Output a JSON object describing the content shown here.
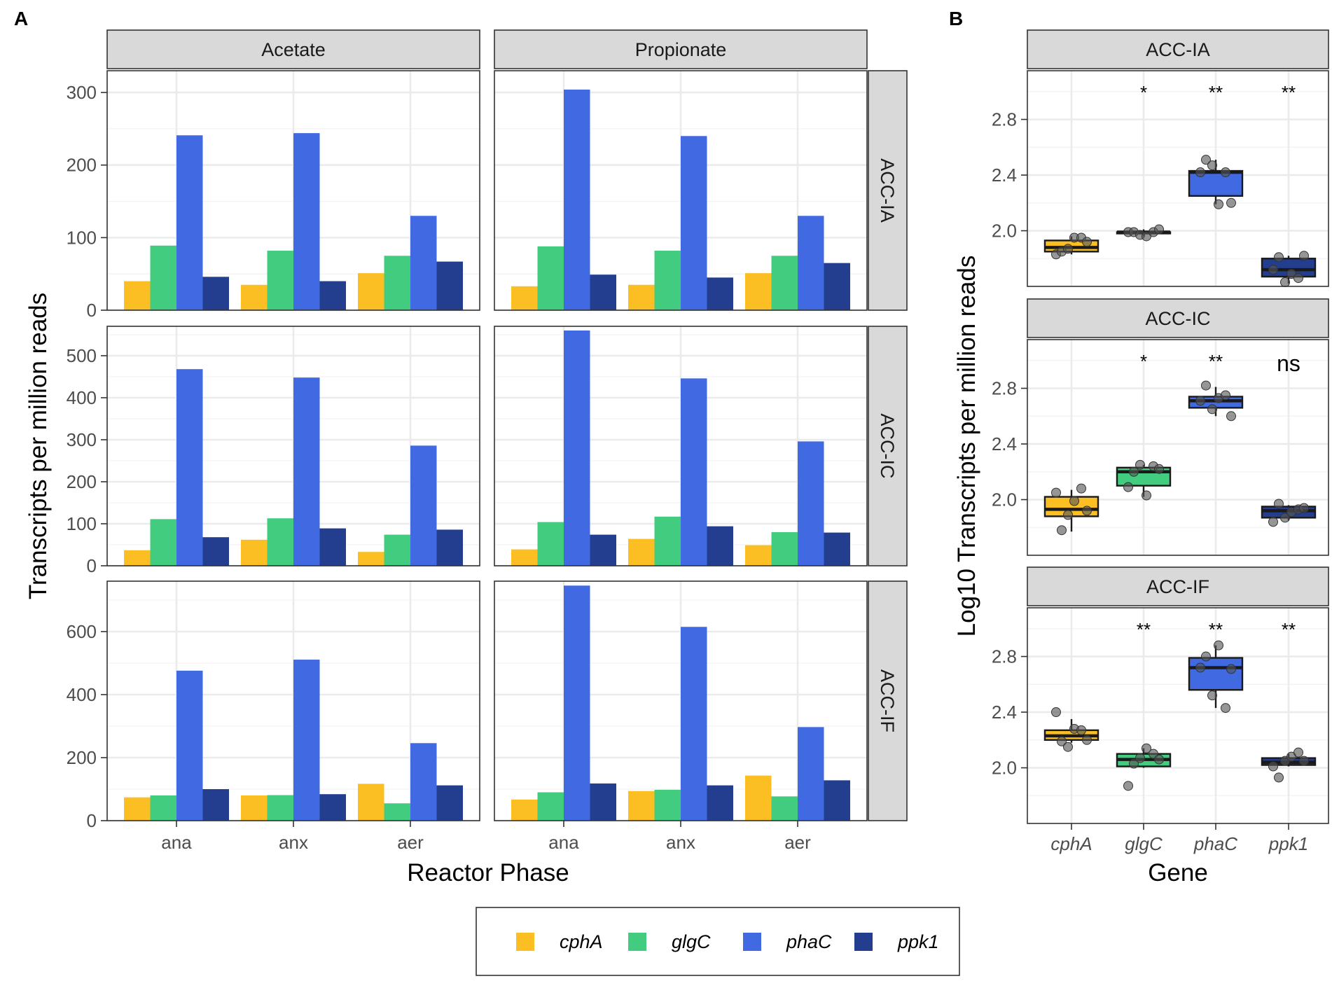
{
  "chart_data": [
    {
      "panel": "A",
      "type": "bar",
      "xlabel": "Reactor Phase",
      "ylabel": "Transcripts per million reads",
      "columns": [
        "Acetate",
        "Propionate"
      ],
      "rows": [
        "ACC-IA",
        "ACC-IC",
        "ACC-IF"
      ],
      "categories": [
        "ana",
        "anx",
        "aer"
      ],
      "genes": [
        "cphA",
        "glgC",
        "phaC",
        "ppk1"
      ],
      "ylims": [
        [
          0,
          330
        ],
        [
          0,
          570
        ],
        [
          0,
          760
        ]
      ],
      "yticks": [
        [
          0,
          100,
          200,
          300
        ],
        [
          0,
          100,
          200,
          300,
          400,
          500
        ],
        [
          0,
          200,
          400,
          600
        ]
      ],
      "values": [
        [
          {
            "cphA": [
              40,
              35,
              51
            ],
            "glgC": [
              89,
              82,
              75
            ],
            "phaC": [
              241,
              244,
              130
            ],
            "ppk1": [
              46,
              40,
              67
            ]
          },
          {
            "cphA": [
              33,
              35,
              51
            ],
            "glgC": [
              88,
              82,
              75
            ],
            "phaC": [
              304,
              240,
              130
            ],
            "ppk1": [
              49,
              45,
              65
            ]
          }
        ],
        [
          {
            "cphA": [
              37,
              62,
              33
            ],
            "glgC": [
              111,
              113,
              74
            ],
            "phaC": [
              468,
              448,
              286
            ],
            "ppk1": [
              68,
              89,
              86
            ]
          },
          {
            "cphA": [
              39,
              64,
              49
            ],
            "glgC": [
              104,
              117,
              80
            ],
            "phaC": [
              560,
              446,
              296
            ],
            "ppk1": [
              74,
              94,
              79
            ]
          }
        ],
        [
          {
            "cphA": [
              74,
              80,
              117
            ],
            "glgC": [
              80,
              81,
              55
            ],
            "phaC": [
              476,
              511,
              246
            ],
            "ppk1": [
              100,
              84,
              112
            ]
          },
          {
            "cphA": [
              67,
              94,
              143
            ],
            "glgC": [
              90,
              98,
              77
            ],
            "phaC": [
              746,
              615,
              297
            ],
            "ppk1": [
              118,
              112,
              128
            ]
          }
        ]
      ]
    },
    {
      "panel": "B",
      "type": "box",
      "xlabel": "Gene",
      "ylabel": "Log10 Transcripts per million reads",
      "categories": [
        "cphA",
        "glgC",
        "phaC",
        "ppk1"
      ],
      "ylim": [
        1.6,
        3.15
      ],
      "yticks": [
        2.0,
        2.4,
        2.8
      ],
      "facets": [
        {
          "label": "ACC-IA",
          "signif": [
            "",
            "*",
            "**",
            "**"
          ],
          "boxes": [
            {
              "gene": "cphA",
              "min": 1.83,
              "q1": 1.85,
              "median": 1.88,
              "q3": 1.93,
              "max": 1.96,
              "points": [
                1.83,
                1.85,
                1.87,
                1.95,
                1.95,
                1.92
              ]
            },
            {
              "gene": "glgC",
              "min": 1.96,
              "q1": 1.98,
              "median": 1.99,
              "q3": 1.99,
              "max": 2.01,
              "points": [
                1.99,
                1.99,
                1.97,
                1.96,
                1.99,
                2.01
              ]
            },
            {
              "gene": "phaC",
              "min": 2.19,
              "q1": 2.25,
              "median": 2.42,
              "q3": 2.43,
              "max": 2.51,
              "points": [
                2.42,
                2.51,
                2.47,
                2.19,
                2.42,
                2.2
              ]
            },
            {
              "gene": "ppk1",
              "min": 1.62,
              "q1": 1.67,
              "median": 1.72,
              "q3": 1.8,
              "max": 1.82,
              "points": [
                1.72,
                1.81,
                1.63,
                1.69,
                1.66,
                1.82
              ]
            }
          ]
        },
        {
          "label": "ACC-IC",
          "signif": [
            "",
            "*",
            "**",
            "ns"
          ],
          "boxes": [
            {
              "gene": "cphA",
              "min": 1.77,
              "q1": 1.88,
              "median": 1.93,
              "q3": 2.02,
              "max": 2.07,
              "points": [
                2.05,
                1.78,
                1.89,
                1.99,
                2.08,
                1.92
              ]
            },
            {
              "gene": "glgC",
              "min": 2.02,
              "q1": 2.1,
              "median": 2.2,
              "q3": 2.23,
              "max": 2.25,
              "points": [
                2.09,
                2.2,
                2.25,
                2.03,
                2.24,
                2.22
              ]
            },
            {
              "gene": "phaC",
              "min": 2.6,
              "q1": 2.66,
              "median": 2.71,
              "q3": 2.74,
              "max": 2.81,
              "points": [
                2.71,
                2.82,
                2.65,
                2.73,
                2.75,
                2.6
              ]
            },
            {
              "gene": "ppk1",
              "min": 1.85,
              "q1": 1.87,
              "median": 1.92,
              "q3": 1.95,
              "max": 1.96,
              "points": [
                1.84,
                1.97,
                1.87,
                1.91,
                1.93,
                1.94
              ]
            }
          ]
        },
        {
          "label": "ACC-IF",
          "signif": [
            "",
            "**",
            "**",
            "**"
          ],
          "boxes": [
            {
              "gene": "cphA",
              "min": 2.18,
              "q1": 2.2,
              "median": 2.23,
              "q3": 2.27,
              "max": 2.35,
              "points": [
                2.4,
                2.19,
                2.15,
                2.28,
                2.27,
                2.2
              ]
            },
            {
              "gene": "glgC",
              "min": 2.0,
              "q1": 2.01,
              "median": 2.06,
              "q3": 2.1,
              "max": 2.14,
              "points": [
                1.87,
                2.03,
                2.07,
                2.14,
                2.1,
                2.06
              ]
            },
            {
              "gene": "phaC",
              "min": 2.43,
              "q1": 2.56,
              "median": 2.72,
              "q3": 2.79,
              "max": 2.88,
              "points": [
                2.72,
                2.8,
                2.52,
                2.88,
                2.43,
                2.71
              ]
            },
            {
              "gene": "ppk1",
              "min": 2.01,
              "q1": 2.02,
              "median": 2.04,
              "q3": 2.07,
              "max": 2.1,
              "points": [
                2.01,
                1.93,
                2.05,
                2.08,
                2.11,
                2.05
              ]
            }
          ]
        }
      ]
    }
  ],
  "legend": {
    "items": [
      {
        "label": "cphA",
        "color": "#fbbf24"
      },
      {
        "label": "glgC",
        "color": "#42cc7f"
      },
      {
        "label": "phaC",
        "color": "#4169e1"
      },
      {
        "label": "ppk1",
        "color": "#233d8f"
      }
    ]
  },
  "labels": {
    "panel_a": "A",
    "panel_b": "B"
  }
}
